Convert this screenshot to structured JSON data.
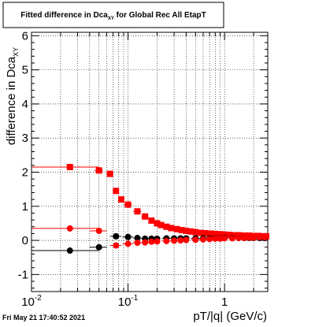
{
  "title": {
    "prefix": "Fitted difference in Dca",
    "subscript": "XY",
    "suffix": " for Global Rec All EtapT"
  },
  "footer": {
    "timestamp": "Fri May 21 17:40:52 2021"
  },
  "chart_data": {
    "type": "scatter",
    "title": "Fitted difference in Dca_XY for Global Rec All EtapT",
    "xlabel": "pT/|q| (GeV/c)",
    "ylabel": "difference in Dca_XY",
    "ylabel_parts": {
      "main": "difference in Dca",
      "subscript": "XY"
    },
    "x_scale": "log",
    "xlim": [
      0.01,
      2.8
    ],
    "ylim": [
      -1.5,
      6.1
    ],
    "grid": true,
    "x_tick_labels": [
      {
        "value": 0.01,
        "base": "10",
        "exp": "-2"
      },
      {
        "value": 0.1,
        "base": "10",
        "exp": "-1"
      },
      {
        "value": 1,
        "base": "1",
        "exp": ""
      }
    ],
    "y_ticks": [
      -1,
      0,
      1,
      2,
      3,
      4,
      5,
      6
    ],
    "series": [
      {
        "marker": "square",
        "color": "#ff0000",
        "x": [
          0.025,
          0.05,
          0.065,
          0.075,
          0.085,
          0.1,
          0.125,
          0.15,
          0.175,
          0.2,
          0.22,
          0.25,
          0.28,
          0.32,
          0.36,
          0.4,
          0.45,
          0.5,
          0.56,
          0.63,
          0.71,
          0.8,
          0.9,
          1.0,
          1.12,
          1.26,
          1.41,
          1.58,
          1.78,
          2.0,
          2.24,
          2.5,
          2.7
        ],
        "y": [
          2.15,
          2.05,
          1.95,
          1.45,
          1.2,
          1.05,
          0.85,
          0.7,
          0.58,
          0.5,
          0.45,
          0.4,
          0.36,
          0.33,
          0.3,
          0.28,
          0.26,
          0.24,
          0.22,
          0.21,
          0.2,
          0.19,
          0.18,
          0.17,
          0.16,
          0.15,
          0.15,
          0.14,
          0.14,
          0.13,
          0.13,
          0.12,
          0.12
        ],
        "xerr": [
          0.025,
          0.005,
          0.005,
          0.005,
          0.005,
          0.01,
          0.0125,
          0.0125,
          0.0125,
          0.0125,
          0.01,
          0.015,
          0.015,
          0.02,
          0.02,
          0.02,
          0.025,
          0.025,
          0.03,
          0.035,
          0.04,
          0.045,
          0.05,
          0.05,
          0.06,
          0.07,
          0.075,
          0.085,
          0.1,
          0.11,
          0.12,
          0.13,
          0.1
        ]
      },
      {
        "marker": "circle",
        "color": "#000000",
        "x": [
          0.025,
          0.05,
          0.075,
          0.1,
          0.125,
          0.15,
          0.175,
          0.2,
          0.25,
          0.3,
          0.35,
          0.4,
          0.5,
          0.6,
          0.7,
          0.8,
          0.9,
          1.0,
          1.2,
          1.4,
          1.6,
          1.8,
          2.0,
          2.3,
          2.6
        ],
        "y": [
          -0.3,
          -0.2,
          0.12,
          0.1,
          0.07,
          0.05,
          0.05,
          0.05,
          0.06,
          0.06,
          0.06,
          0.06,
          0.06,
          0.06,
          0.06,
          0.06,
          0.06,
          0.07,
          0.07,
          0.07,
          0.07,
          0.07,
          0.07,
          0.07,
          0.07
        ],
        "xerr": [
          0.025,
          0.01,
          0.01,
          0.0125,
          0.0125,
          0.0125,
          0.0125,
          0.0125,
          0.025,
          0.025,
          0.025,
          0.025,
          0.05,
          0.05,
          0.05,
          0.05,
          0.05,
          0.05,
          0.1,
          0.1,
          0.1,
          0.1,
          0.1,
          0.15,
          0.15
        ]
      },
      {
        "marker": "circle",
        "color": "#ff0000",
        "x": [
          0.025,
          0.05,
          0.075,
          0.1,
          0.125,
          0.15,
          0.175,
          0.2,
          0.25,
          0.3,
          0.35,
          0.4,
          0.5,
          0.6,
          0.7,
          0.8,
          0.9,
          1.0,
          1.2,
          1.4,
          1.6,
          1.8,
          2.0,
          2.3,
          2.6
        ],
        "y": [
          0.35,
          0.28,
          -0.15,
          -0.1,
          -0.07,
          -0.06,
          -0.04,
          -0.03,
          -0.02,
          -0.01,
          0.0,
          0.01,
          0.02,
          0.03,
          0.04,
          0.05,
          0.05,
          0.06,
          0.06,
          0.07,
          0.07,
          0.08,
          0.08,
          0.09,
          0.09
        ],
        "xerr": [
          0.025,
          0.01,
          0.01,
          0.0125,
          0.0125,
          0.0125,
          0.0125,
          0.0125,
          0.025,
          0.025,
          0.025,
          0.025,
          0.05,
          0.05,
          0.05,
          0.05,
          0.05,
          0.05,
          0.1,
          0.1,
          0.1,
          0.1,
          0.1,
          0.15,
          0.15
        ]
      }
    ]
  }
}
